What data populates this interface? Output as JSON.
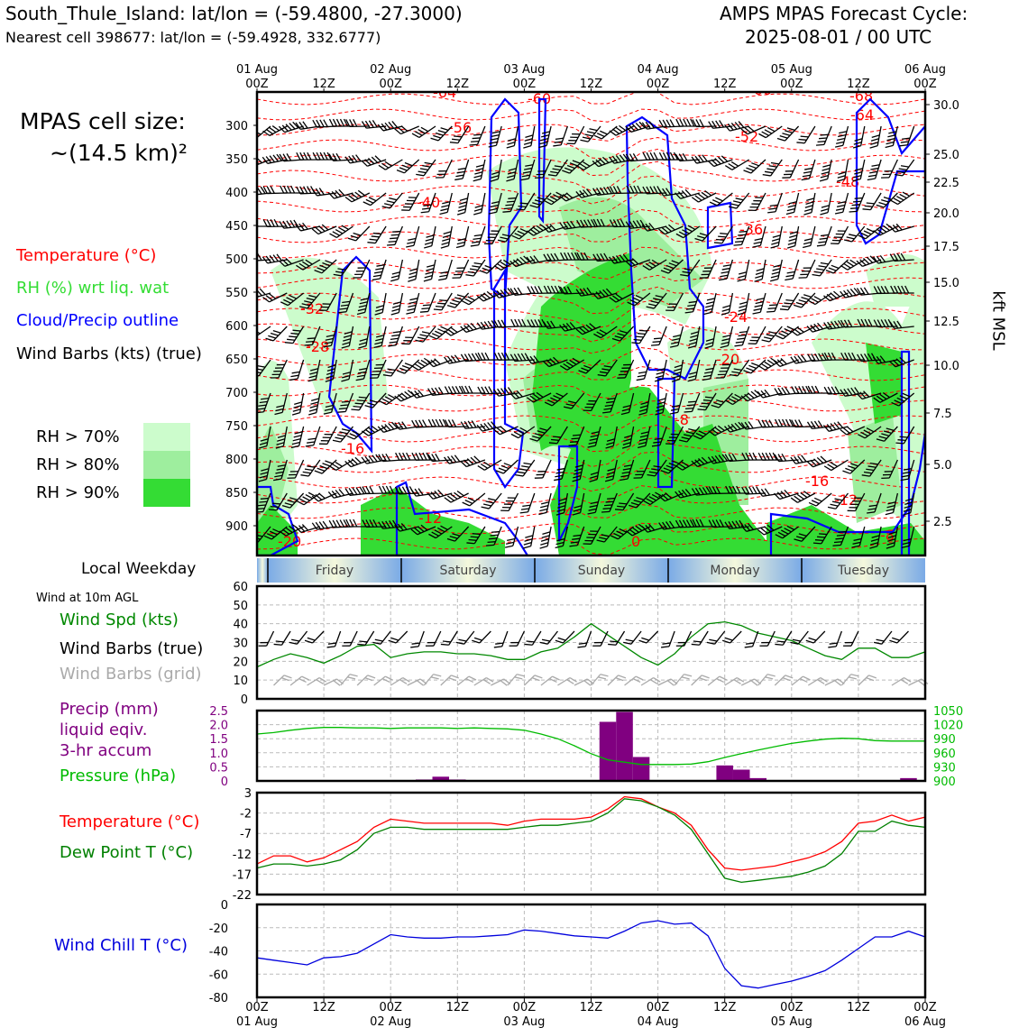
{
  "header": {
    "station_line": "South_Thule_Island: lat/lon = (-59.4800, -27.3000)",
    "cell_line": "Nearest cell 398677: lat/lon = (-59.4928, 332.6777)",
    "cycle_label": "AMPS MPAS Forecast Cycle:",
    "cycle_value": "2025-08-01 / 00 UTC"
  },
  "left_legend": {
    "cell_size_label": "MPAS cell size:",
    "cell_size_value": "~(14.5 km)²",
    "temperature": "Temperature (°C)",
    "rh": "RH (%) wrt liq. wat",
    "cloud": "Cloud/Precip outline",
    "wind_barbs": "Wind Barbs (kts) (true)",
    "rh70": "RH > 70%",
    "rh80": "RH > 80%",
    "rh90": "RH > 90%",
    "local_weekday": "Local Weekday",
    "wind10m": "Wind at 10m AGL",
    "wind_spd": "Wind Spd (kts)",
    "barbs_true": "Wind Barbs (true)",
    "barbs_grid": "Wind Barbs (grid)",
    "precip1": "Precip (mm)",
    "precip2": "liquid eqiv.",
    "precip3": "3-hr accum",
    "pressure": "Pressure (hPa)",
    "temp2": "Temperature (°C)",
    "dewpt": "Dew Point T (°C)",
    "windchill": "Wind Chill T (°C)"
  },
  "colors": {
    "rh70": "#ccfccc",
    "rh80": "#9eee9e",
    "rh90": "#34dc34",
    "temperature": "#ff0000",
    "cloud": "#0000ff",
    "wind_spd": "#008800",
    "pressure": "#00bb00",
    "precip": "#800080",
    "dewpoint": "#008000",
    "windchill": "#0000dd",
    "grid_barbs": "#aaaaaa"
  },
  "chart_data": [
    {
      "type": "heatmap",
      "title": "",
      "time_ticks": [
        "00Z",
        "12Z",
        "00Z",
        "12Z",
        "00Z",
        "12Z",
        "00Z",
        "12Z",
        "00Z",
        "12Z",
        "00Z"
      ],
      "date_ticks": [
        "01 Aug",
        "02 Aug",
        "03 Aug",
        "04 Aug",
        "05 Aug",
        "06 Aug"
      ],
      "pressure_ticks": [
        "300",
        "350",
        "400",
        "450",
        "500",
        "550",
        "600",
        "650",
        "700",
        "750",
        "800",
        "850",
        "900"
      ],
      "kft_ticks": [
        "30.0",
        "25.0",
        "22.5",
        "20.0",
        "17.5",
        "15.0",
        "12.5",
        "10.0",
        "7.5",
        "5.0",
        "2.5"
      ],
      "right_axis_label": "kft MSL",
      "temperature_contour_labels": [
        "-64",
        "-60",
        "-56",
        "-52",
        "-68",
        "-64",
        "-60",
        "-48",
        "-40",
        "-36",
        "-32",
        "-28",
        "-24",
        "-20",
        "-16",
        "-12",
        "-12",
        "-8",
        "-8",
        "-4",
        "0",
        "-16",
        "-20"
      ]
    },
    {
      "type": "table",
      "weekdays": [
        "Friday",
        "Saturday",
        "Sunday",
        "Monday",
        "Tuesday"
      ]
    },
    {
      "type": "line",
      "ylim": [
        0,
        60
      ],
      "yticks": [
        "0",
        "10",
        "20",
        "30",
        "40",
        "50",
        "60"
      ],
      "x": [
        0,
        3,
        6,
        9,
        12,
        15,
        18,
        21,
        24,
        27,
        30,
        33,
        36,
        39,
        42,
        45,
        48,
        51,
        54,
        57,
        60,
        63,
        66,
        69,
        72,
        75,
        78,
        81,
        84,
        87,
        90,
        93,
        96,
        99,
        102,
        105,
        108,
        111,
        114,
        117,
        120
      ],
      "series": [
        {
          "name": "Wind Spd (kts)",
          "values": [
            17,
            21,
            24,
            22,
            19,
            23,
            28,
            29,
            22,
            24,
            25,
            25,
            24,
            24,
            23,
            21,
            21,
            25,
            27,
            33,
            40,
            34,
            28,
            22,
            18,
            24,
            33,
            40,
            41,
            39,
            35,
            33,
            31,
            27,
            23,
            21,
            27,
            27,
            22,
            22,
            25
          ]
        }
      ]
    },
    {
      "type": "bar",
      "ylim_precip": [
        0,
        2.5
      ],
      "precip_ticks": [
        "0",
        "0.5",
        "1.0",
        "1.5",
        "2.0",
        "2.5"
      ],
      "pressure_ticks": [
        "900",
        "930",
        "960",
        "990",
        "1020",
        "1050"
      ],
      "pressure_unit": "(hPa)",
      "x": [
        0,
        3,
        6,
        9,
        12,
        15,
        18,
        21,
        24,
        27,
        30,
        33,
        36,
        39,
        42,
        45,
        48,
        51,
        54,
        57,
        60,
        63,
        66,
        69,
        72,
        75,
        78,
        81,
        84,
        87,
        90,
        93,
        96,
        99,
        102,
        105,
        108,
        111,
        114,
        117,
        120
      ],
      "precip": [
        0,
        0,
        0,
        0,
        0,
        0,
        0,
        0,
        0,
        0,
        0.05,
        0.15,
        0.05,
        0,
        0,
        0,
        0,
        0,
        0,
        0,
        0,
        2.1,
        2.45,
        0.85,
        0,
        0,
        0,
        0,
        0.55,
        0.4,
        0.1,
        0,
        0,
        0,
        0,
        0,
        0,
        0,
        0,
        0.1,
        0
      ],
      "pressure": [
        1000,
        1003,
        1008,
        1012,
        1014,
        1014,
        1013,
        1013,
        1012,
        1013,
        1013,
        1013,
        1012,
        1013,
        1012,
        1011,
        1008,
        1000,
        990,
        975,
        958,
        945,
        940,
        935,
        935,
        935,
        936,
        941,
        950,
        958,
        966,
        973,
        980,
        985,
        989,
        991,
        990,
        986,
        985,
        985,
        985
      ]
    },
    {
      "type": "line",
      "ylim": [
        -22,
        3
      ],
      "yticks": [
        "3",
        "-2",
        "-7",
        "-12",
        "-17",
        "-22"
      ],
      "x": [
        0,
        3,
        6,
        9,
        12,
        15,
        18,
        21,
        24,
        27,
        30,
        33,
        36,
        39,
        42,
        45,
        48,
        51,
        54,
        57,
        60,
        63,
        66,
        69,
        72,
        75,
        78,
        81,
        84,
        87,
        90,
        93,
        96,
        99,
        102,
        105,
        108,
        111,
        114,
        117,
        120
      ],
      "series": [
        {
          "name": "Temperature (°C)",
          "values": [
            -14.5,
            -12.5,
            -12.5,
            -14,
            -13,
            -11,
            -9,
            -5.5,
            -3.5,
            -4,
            -4.5,
            -4.5,
            -4.5,
            -4.5,
            -4.5,
            -5,
            -4,
            -3.5,
            -3.5,
            -3.5,
            -3,
            -1,
            2,
            1.5,
            -0.5,
            -2,
            -5,
            -11,
            -15.5,
            -16,
            -15.5,
            -15,
            -14,
            -13,
            -11.5,
            -9,
            -4.5,
            -4,
            -2.5,
            -4,
            -3
          ]
        },
        {
          "name": "Dew Point T (°C)",
          "values": [
            -15.5,
            -14.5,
            -14.5,
            -15,
            -14.5,
            -13.5,
            -11,
            -7,
            -5.5,
            -5.5,
            -6,
            -6,
            -6,
            -6,
            -6,
            -6,
            -5.5,
            -5,
            -5,
            -4.5,
            -4,
            -2,
            1.5,
            1,
            -0.5,
            -2.5,
            -6,
            -12,
            -18,
            -19,
            -18.5,
            -18,
            -17.5,
            -16.5,
            -15,
            -12,
            -6.5,
            -6.5,
            -4,
            -5,
            -5.5
          ]
        }
      ]
    },
    {
      "type": "line",
      "ylim": [
        -80,
        0
      ],
      "yticks": [
        "0",
        "-20",
        "-40",
        "-60",
        "-80"
      ],
      "x": [
        0,
        3,
        6,
        9,
        12,
        15,
        18,
        21,
        24,
        27,
        30,
        33,
        36,
        39,
        42,
        45,
        48,
        51,
        54,
        57,
        60,
        63,
        66,
        69,
        72,
        75,
        78,
        81,
        84,
        87,
        90,
        93,
        96,
        99,
        102,
        105,
        108,
        111,
        114,
        117,
        120
      ],
      "series": [
        {
          "name": "Wind Chill T (°C)",
          "values": [
            -46,
            -48,
            -50,
            -52,
            -46,
            -45,
            -42,
            -34,
            -26,
            -28,
            -29,
            -29,
            -28,
            -28,
            -27,
            -26,
            -22,
            -23,
            -25,
            -27,
            -28,
            -29,
            -23,
            -16,
            -14,
            -17,
            -16,
            -27,
            -55,
            -70,
            -72,
            -69,
            -66,
            -62,
            -57,
            -48,
            -38,
            -28,
            -28,
            -23,
            -28
          ]
        }
      ]
    }
  ]
}
